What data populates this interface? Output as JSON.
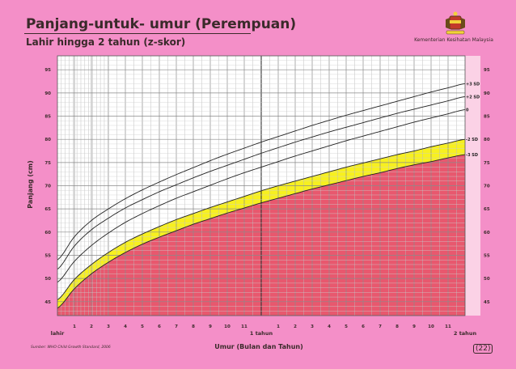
{
  "header": {
    "title": "Panjang-untuk- umur (Perempuan)",
    "subtitle": "Lahir hingga 2 tahun (z-skor)",
    "ministry": "Kementerian Kesihatan Malaysia"
  },
  "footer": {
    "source": "Sumber: WHO Child Growth Standard, 2006",
    "page": "(22)"
  },
  "colors": {
    "background": "#f48fc8",
    "plot": "#ffffff",
    "below_minus3": "#e8586e",
    "band_minus2_minus3": "#f7f020",
    "lines": "#222222",
    "axis_label_strip": "#fbd2e6"
  },
  "chart_data": {
    "type": "line",
    "xlabel": "Umur (Bulan dan Tahun)",
    "ylabel": "Panjang (cm)",
    "xlim": [
      0,
      24
    ],
    "ylim": [
      42,
      98
    ],
    "yticks": [
      45,
      50,
      55,
      60,
      65,
      70,
      75,
      80,
      85,
      90,
      95
    ],
    "xtick_labels": [
      {
        "x": 0,
        "label": "lahir"
      },
      {
        "x": 1,
        "label": "1"
      },
      {
        "x": 2,
        "label": "2"
      },
      {
        "x": 3,
        "label": "3"
      },
      {
        "x": 4,
        "label": "4"
      },
      {
        "x": 5,
        "label": "5"
      },
      {
        "x": 6,
        "label": "6"
      },
      {
        "x": 7,
        "label": "7"
      },
      {
        "x": 8,
        "label": "8"
      },
      {
        "x": 9,
        "label": "9"
      },
      {
        "x": 10,
        "label": "10"
      },
      {
        "x": 11,
        "label": "11"
      },
      {
        "x": 12,
        "label": "1 tahun"
      },
      {
        "x": 13,
        "label": "1"
      },
      {
        "x": 14,
        "label": "2"
      },
      {
        "x": 15,
        "label": "3"
      },
      {
        "x": 16,
        "label": "4"
      },
      {
        "x": 17,
        "label": "5"
      },
      {
        "x": 18,
        "label": "6"
      },
      {
        "x": 19,
        "label": "7"
      },
      {
        "x": 20,
        "label": "8"
      },
      {
        "x": 21,
        "label": "9"
      },
      {
        "x": 22,
        "label": "10"
      },
      {
        "x": 23,
        "label": "11"
      },
      {
        "x": 24,
        "label": "2 tahun"
      }
    ],
    "x": [
      0,
      1,
      2,
      3,
      4,
      5,
      6,
      7,
      8,
      9,
      10,
      11,
      12,
      13,
      14,
      15,
      16,
      17,
      18,
      19,
      20,
      21,
      22,
      23,
      24
    ],
    "series": [
      {
        "name": "+3 SD",
        "values": [
          54.0,
          59.0,
          62.5,
          65.0,
          67.2,
          69.1,
          70.8,
          72.4,
          73.9,
          75.4,
          76.8,
          78.1,
          79.4,
          80.6,
          81.8,
          83.0,
          84.1,
          85.2,
          86.2,
          87.2,
          88.2,
          89.2,
          90.2,
          91.1,
          92.0
        ]
      },
      {
        "name": "+2 SD",
        "values": [
          52.0,
          57.0,
          60.5,
          63.0,
          65.2,
          67.0,
          68.7,
          70.2,
          71.7,
          73.1,
          74.4,
          75.7,
          77.0,
          78.2,
          79.4,
          80.5,
          81.6,
          82.6,
          83.6,
          84.6,
          85.6,
          86.5,
          87.4,
          88.3,
          89.2
        ]
      },
      {
        "name": "0",
        "values": [
          49.2,
          53.7,
          57.1,
          59.8,
          62.1,
          64.0,
          65.7,
          67.3,
          68.7,
          70.1,
          71.5,
          72.8,
          74.0,
          75.2,
          76.4,
          77.5,
          78.6,
          79.7,
          80.7,
          81.7,
          82.7,
          83.7,
          84.6,
          85.5,
          86.4
        ]
      },
      {
        "name": "-2 SD",
        "values": [
          45.4,
          49.8,
          53.0,
          55.6,
          57.8,
          59.6,
          61.2,
          62.7,
          64.0,
          65.3,
          66.5,
          67.7,
          68.9,
          70.0,
          71.0,
          72.0,
          73.0,
          74.0,
          74.9,
          75.8,
          76.7,
          77.5,
          78.4,
          79.2,
          80.0
        ]
      },
      {
        "name": "-3 SD",
        "values": [
          43.6,
          47.8,
          51.0,
          53.5,
          55.6,
          57.4,
          58.9,
          60.3,
          61.7,
          62.9,
          64.1,
          65.2,
          66.3,
          67.3,
          68.3,
          69.3,
          70.2,
          71.1,
          72.0,
          72.8,
          73.7,
          74.5,
          75.2,
          76.0,
          76.7
        ]
      }
    ]
  }
}
